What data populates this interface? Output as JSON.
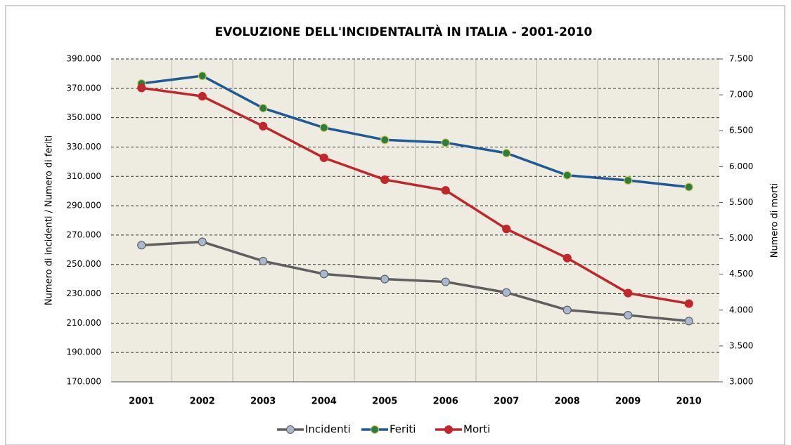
{
  "chart_data": {
    "type": "line",
    "title": "EVOLUZIONE DELL'INCIDENTALITÀ IN ITALIA - 2001-2010",
    "y_label": "Numero di incidenti / Numero di feriti",
    "y2_label": "Numero di morti",
    "categories": [
      "2001",
      "2002",
      "2003",
      "2004",
      "2005",
      "2006",
      "2007",
      "2008",
      "2009",
      "2010"
    ],
    "series": [
      {
        "name": "Incidenti",
        "color": "#5f5f5f",
        "marker_color": "#a9b8cc",
        "values": [
          263100,
          265402,
          252271,
          243490,
          240011,
          238124,
          230871,
          218963,
          215405,
          211404
        ]
      },
      {
        "name": "Feriti",
        "color": "#1f5a96",
        "marker_color": "#2e7d3a",
        "values": [
          373286,
          378492,
          356475,
          343179,
          334858,
          332955,
          325850,
          310745,
          307258,
          302735
        ]
      },
      {
        "name": "Morti",
        "color": "#c0262c",
        "marker_color": "#c0262c",
        "axis": "y2",
        "values": [
          7096,
          6980,
          6563,
          6122,
          5818,
          5669,
          5131,
          4725,
          4237,
          4090
        ]
      }
    ],
    "ylim": [
      170000,
      390000
    ],
    "yticks": [
      {
        "value": 170000,
        "label": "170.000"
      },
      {
        "value": 190000,
        "label": "190.000"
      },
      {
        "value": 210000,
        "label": "210.000"
      },
      {
        "value": 230000,
        "label": "230.000"
      },
      {
        "value": 250000,
        "label": "250.000"
      },
      {
        "value": 270000,
        "label": "270.000"
      },
      {
        "value": 290000,
        "label": "290.000"
      },
      {
        "value": 310000,
        "label": "310.000"
      },
      {
        "value": 330000,
        "label": "330.000"
      },
      {
        "value": 350000,
        "label": "350.000"
      },
      {
        "value": 370000,
        "label": "370.000"
      },
      {
        "value": 390000,
        "label": "390.000"
      }
    ],
    "y2lim": [
      3000,
      7500
    ],
    "y2ticks": [
      {
        "value": 3000,
        "label": "3.000"
      },
      {
        "value": 3500,
        "label": "3.500"
      },
      {
        "value": 4000,
        "label": "4.000"
      },
      {
        "value": 4500,
        "label": "4.500"
      },
      {
        "value": 5000,
        "label": "5.000"
      },
      {
        "value": 5500,
        "label": "5.500"
      },
      {
        "value": 6000,
        "label": "6.000"
      },
      {
        "value": 6500,
        "label": "6.500"
      },
      {
        "value": 7000,
        "label": "7.000"
      },
      {
        "value": 7500,
        "label": "7.500"
      }
    ],
    "grid": true,
    "legend": "bottom"
  }
}
